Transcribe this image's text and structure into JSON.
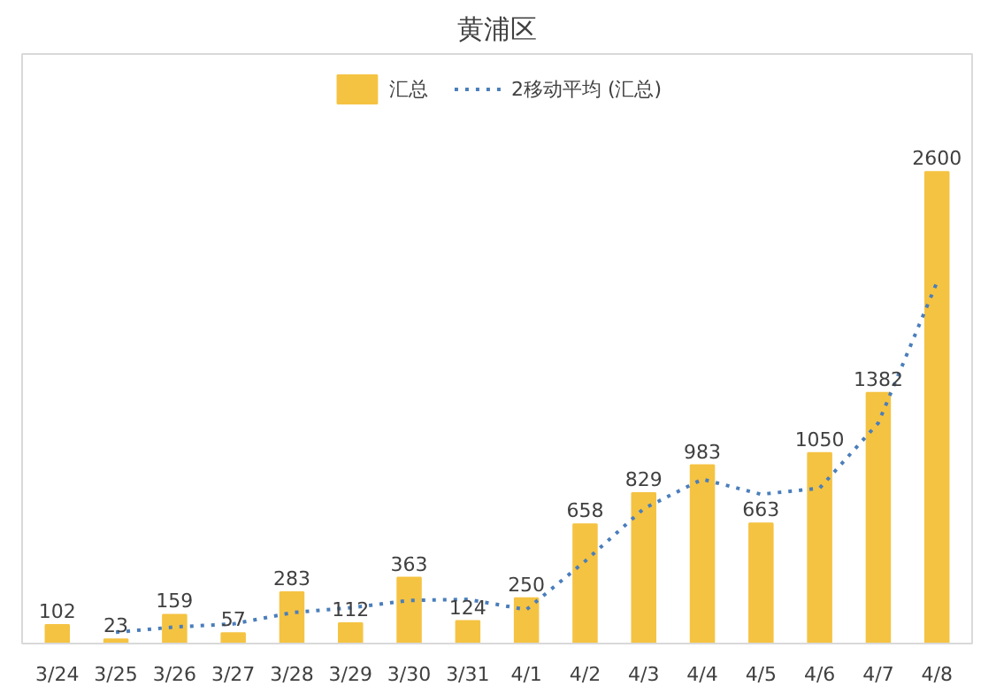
{
  "chart_data": {
    "type": "bar",
    "title": "黄浦区",
    "categories": [
      "3/24",
      "3/25",
      "3/26",
      "3/27",
      "3/28",
      "3/29",
      "3/30",
      "3/31",
      "4/1",
      "4/2",
      "4/3",
      "4/4",
      "4/5",
      "4/6",
      "4/7",
      "4/8"
    ],
    "series": [
      {
        "name": "汇总",
        "color": "#f5c342",
        "values": [
          102,
          23,
          159,
          57,
          283,
          112,
          363,
          124,
          250,
          658,
          829,
          983,
          663,
          1050,
          1382,
          2600
        ],
        "value_labels": [
          "102",
          "23",
          "159",
          "57",
          "283",
          "112",
          "363",
          "124",
          "250",
          "658",
          "829",
          "983",
          "663",
          "1050",
          "1382",
          "2600"
        ]
      },
      {
        "name": "2移动平均 (汇总)",
        "type": "line",
        "color": "#4a7ebb",
        "line_style": "dotted",
        "values": [
          null,
          62.5,
          91,
          108,
          170,
          197.5,
          237.5,
          243.5,
          187,
          454,
          743.5,
          906,
          823,
          856.5,
          1216,
          1991
        ]
      }
    ],
    "legend": "top",
    "grid": false
  }
}
